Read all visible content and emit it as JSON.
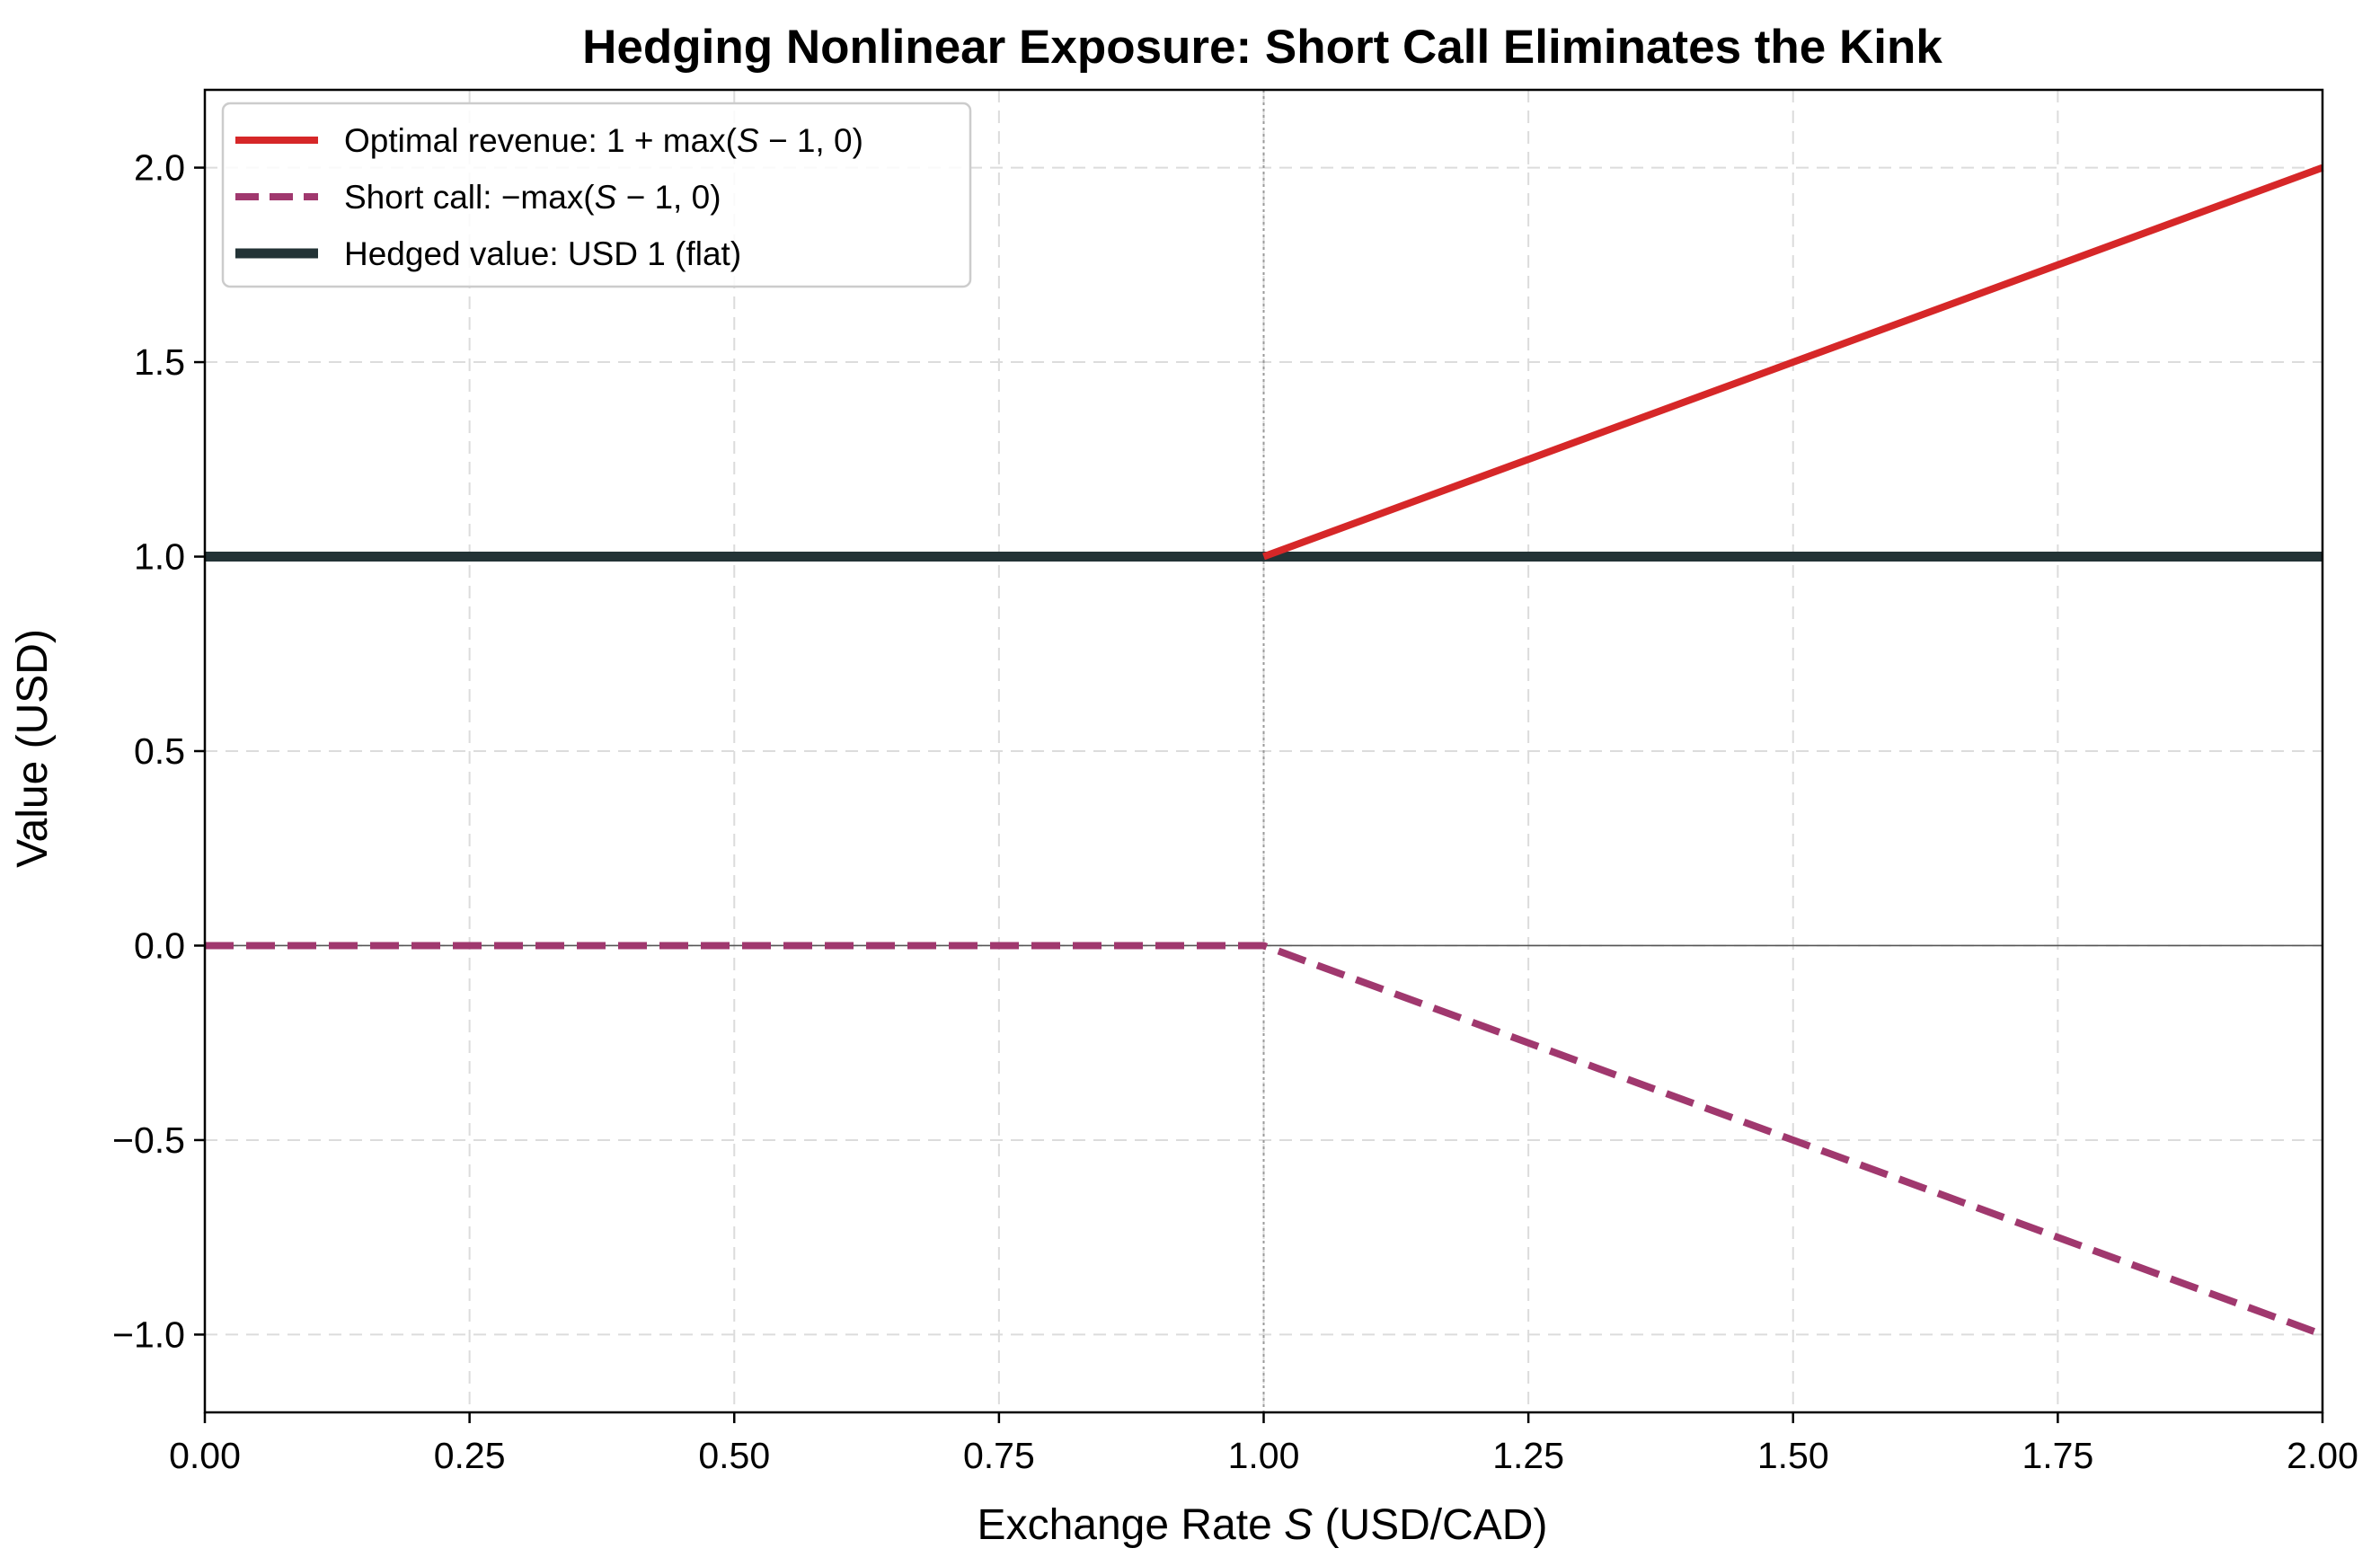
{
  "chart_data": {
    "type": "line",
    "title": "Hedging Nonlinear Exposure: Short Call Eliminates the Kink",
    "xlabel_prefix": "Exchange Rate ",
    "xlabel_var": "S",
    "xlabel_suffix": " (USD/CAD)",
    "ylabel": "Value (USD)",
    "xlim": [
      0.0,
      2.0
    ],
    "ylim": [
      -1.2,
      2.2
    ],
    "xticks": [
      0.0,
      0.25,
      0.5,
      0.75,
      1.0,
      1.25,
      1.5,
      1.75,
      2.0
    ],
    "xtick_labels": [
      "0.00",
      "0.25",
      "0.50",
      "0.75",
      "1.00",
      "1.25",
      "1.50",
      "1.75",
      "2.00"
    ],
    "yticks": [
      -1.0,
      -0.5,
      0.0,
      0.5,
      1.0,
      1.5,
      2.0
    ],
    "ytick_labels": [
      "−1.0",
      "−0.5",
      "0.0",
      "0.5",
      "1.0",
      "1.5",
      "2.0"
    ],
    "grid": true,
    "reference_lines": {
      "horizontal_y": 0.0,
      "vertical_x": 1.0
    },
    "legend_position": "top-left",
    "series": [
      {
        "name": "Optimal revenue: 1 + max(S − 1, 0)",
        "legend_prefix": "Optimal revenue: 1 + max(",
        "legend_var": "S",
        "legend_suffix": " − 1, 0)",
        "style": "solid",
        "color": "#d62728",
        "x": [
          1.0,
          2.0
        ],
        "y": [
          1.0,
          2.0
        ]
      },
      {
        "name": "Short call: −max(S − 1, 0)",
        "legend_prefix": "Short call: −max(",
        "legend_var": "S",
        "legend_suffix": " − 1, 0)",
        "style": "dashed",
        "color": "#a0386e",
        "x": [
          0.0,
          1.0,
          2.0
        ],
        "y": [
          0.0,
          0.0,
          -1.0
        ]
      },
      {
        "name": "Hedged value: USD 1 (flat)",
        "legend_prefix": "Hedged value: USD 1 (flat)",
        "legend_var": "",
        "legend_suffix": "",
        "style": "solid-thick",
        "color": "#233336",
        "x": [
          0.0,
          2.0
        ],
        "y": [
          1.0,
          1.0
        ]
      }
    ]
  }
}
